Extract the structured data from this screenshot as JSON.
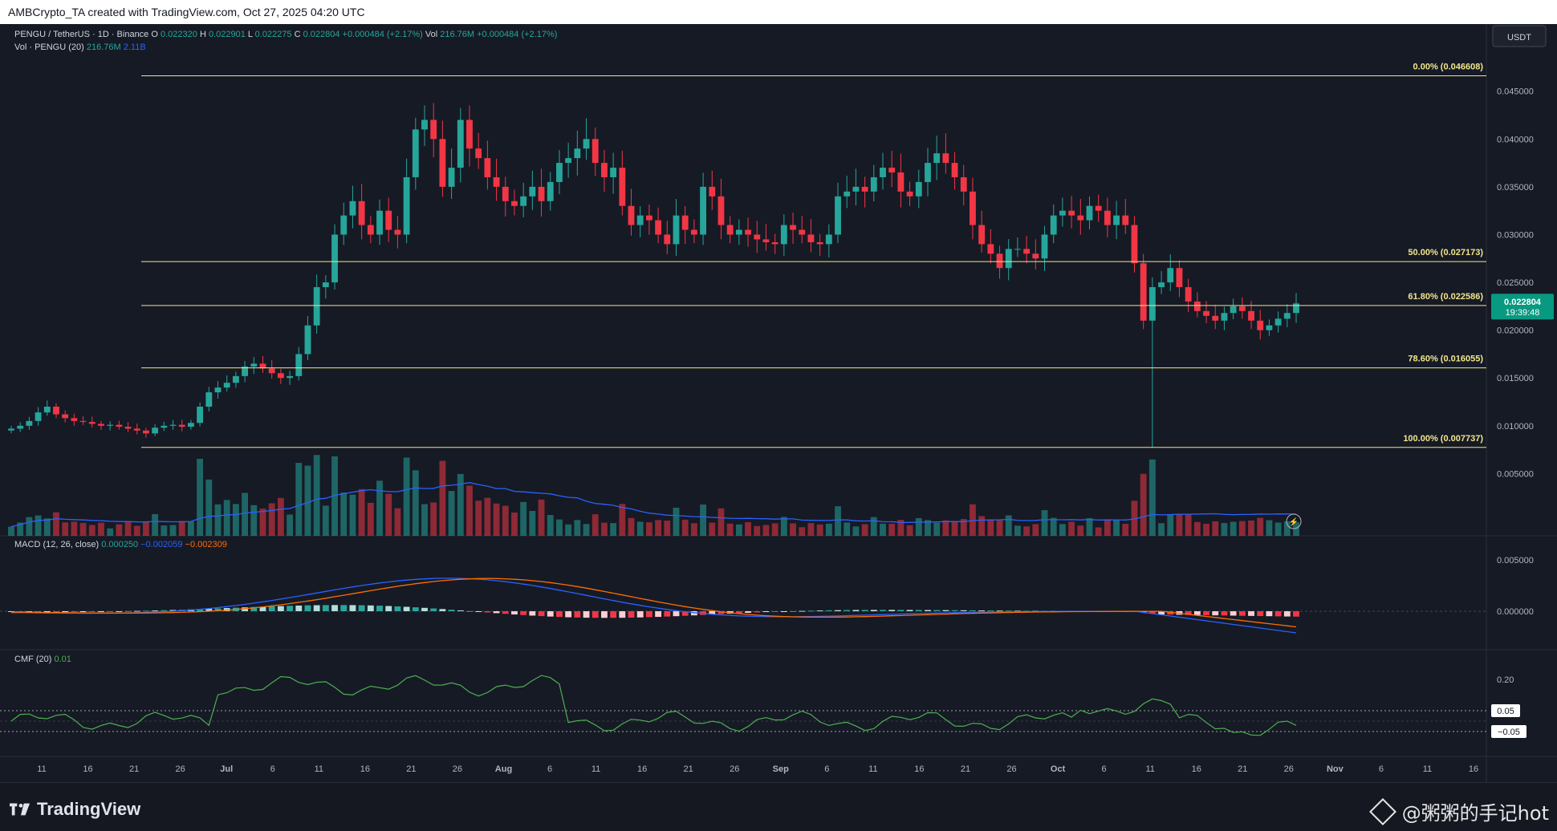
{
  "header": {
    "created": "AMBCrypto_TA created with TradingView.com, Oct 27, 2025 04:20 UTC"
  },
  "legend": {
    "symbol": "PENGU / TetherUS · 1D · Binance",
    "o_label": "O",
    "o_val": "0.022320",
    "h_label": "H",
    "h_val": "0.022901",
    "l_label": "L",
    "l_val": "0.022275",
    "c_label": "C",
    "c_val": "0.022804",
    "change": "+0.000484 (+2.17%)",
    "vol_label": "Vol",
    "vol_val": "216.76M",
    "vol_change": "+0.000484 (+2.17%)",
    "vol_line_label": "Vol · PENGU (20)",
    "vol_line_v1": "216.76M",
    "vol_line_v2": "2.11B",
    "macd_label": "MACD (12, 26, close)",
    "macd_v1": "0.000250",
    "macd_v2": "−0.002059",
    "macd_v3": "−0.002309",
    "cmf_label": "CMF (20)",
    "cmf_val": "0.01"
  },
  "currency_button": "USDT",
  "price_tag": {
    "price": "0.022804",
    "countdown": "19:39:48"
  },
  "fib_levels": [
    {
      "label": "0.00% (0.046608)",
      "price": 0.046608
    },
    {
      "label": "50.00% (0.027173)",
      "price": 0.027173
    },
    {
      "label": "61.80% (0.022586)",
      "price": 0.022586
    },
    {
      "label": "78.60% (0.016055)",
      "price": 0.016055
    },
    {
      "label": "100.00% (0.007737)",
      "price": 0.007737
    }
  ],
  "price_axis": [
    "0.045000",
    "0.040000",
    "0.035000",
    "0.030000",
    "0.025000",
    "0.020000",
    "0.015000",
    "0.010000",
    "0.005000"
  ],
  "macd_axis": [
    "0.005000",
    "0.000000"
  ],
  "cmf_axis": [
    "0.20"
  ],
  "cmf_tags": [
    "0.05",
    "−0.05"
  ],
  "time_axis": [
    "11",
    "16",
    "21",
    "26",
    "Jul",
    "6",
    "11",
    "16",
    "21",
    "26",
    "Aug",
    "6",
    "11",
    "16",
    "21",
    "26",
    "Sep",
    "6",
    "11",
    "16",
    "21",
    "26",
    "Oct",
    "6",
    "11",
    "16",
    "21",
    "26",
    "Nov",
    "6",
    "11",
    "16"
  ],
  "colors": {
    "up": "#26a69a",
    "down": "#f23645",
    "fib": "#f0e68c",
    "macd": "#2962ff",
    "signal": "#ff6d00",
    "cmf": "#4caf50"
  },
  "chart_data": {
    "type": "candlestick",
    "symbol": "PENGU / TetherUS",
    "interval": "1D",
    "ylim": [
      0.0,
      0.0485
    ],
    "key_points": [
      {
        "date": "Jun 11",
        "close": 0.0115
      },
      {
        "date": "Jul 11",
        "close": 0.0228
      },
      {
        "date": "Jul 22",
        "high": 0.046608
      },
      {
        "date": "Aug 13",
        "close": 0.0405
      },
      {
        "date": "Sep 18",
        "close": 0.0385
      },
      {
        "date": "Oct 10",
        "low": 0.0077
      },
      {
        "date": "Oct 27",
        "close": 0.022804
      }
    ],
    "closes": [
      0.0097,
      0.01,
      0.0105,
      0.0114,
      0.012,
      0.0112,
      0.0108,
      0.0105,
      0.0104,
      0.0102,
      0.01,
      0.0101,
      0.0099,
      0.0097,
      0.0095,
      0.0092,
      0.0098,
      0.01,
      0.0101,
      0.0099,
      0.0103,
      0.012,
      0.0135,
      0.014,
      0.0145,
      0.0152,
      0.0162,
      0.0165,
      0.016,
      0.0155,
      0.015,
      0.0152,
      0.0175,
      0.0205,
      0.0245,
      0.025,
      0.03,
      0.032,
      0.0335,
      0.031,
      0.03,
      0.0325,
      0.0305,
      0.03,
      0.036,
      0.041,
      0.042,
      0.04,
      0.035,
      0.037,
      0.042,
      0.039,
      0.038,
      0.036,
      0.035,
      0.0335,
      0.033,
      0.034,
      0.035,
      0.0335,
      0.0355,
      0.0375,
      0.038,
      0.039,
      0.04,
      0.0375,
      0.036,
      0.037,
      0.033,
      0.031,
      0.032,
      0.0315,
      0.03,
      0.029,
      0.032,
      0.0305,
      0.03,
      0.035,
      0.034,
      0.031,
      0.03,
      0.0305,
      0.03,
      0.0295,
      0.0292,
      0.029,
      0.031,
      0.0305,
      0.03,
      0.0292,
      0.029,
      0.03,
      0.034,
      0.0345,
      0.035,
      0.0345,
      0.036,
      0.037,
      0.0365,
      0.0345,
      0.034,
      0.0355,
      0.0375,
      0.0385,
      0.0375,
      0.036,
      0.0345,
      0.031,
      0.029,
      0.028,
      0.0265,
      0.0285,
      0.0285,
      0.028,
      0.0275,
      0.03,
      0.032,
      0.0325,
      0.032,
      0.0315,
      0.033,
      0.0325,
      0.031,
      0.032,
      0.031,
      0.027,
      0.021,
      0.0245,
      0.025,
      0.0265,
      0.0245,
      0.023,
      0.022,
      0.0215,
      0.021,
      0.0218,
      0.0225,
      0.022,
      0.021,
      0.02,
      0.0205,
      0.0212,
      0.0218,
      0.0228
    ]
  }
}
